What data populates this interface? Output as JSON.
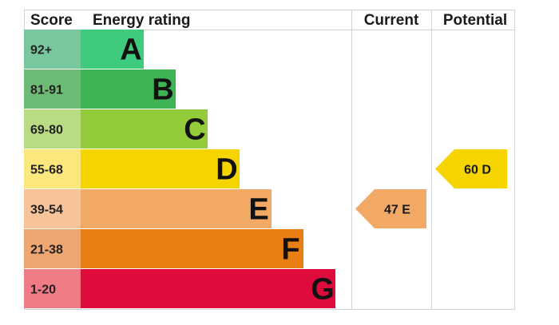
{
  "headers": {
    "score": "Score",
    "energy_rating": "Energy rating",
    "current": "Current",
    "potential": "Potential"
  },
  "chart_data": {
    "type": "bar",
    "categories": [
      "A",
      "B",
      "C",
      "D",
      "E",
      "F",
      "G"
    ],
    "bands": [
      {
        "letter": "A",
        "range": "92+",
        "score_color": "#79c89d",
        "bar_color": "#3ecb7e"
      },
      {
        "letter": "B",
        "range": "81-91",
        "score_color": "#6dbb75",
        "bar_color": "#3eb454"
      },
      {
        "letter": "C",
        "range": "69-80",
        "score_color": "#b9dc83",
        "bar_color": "#93cb3a"
      },
      {
        "letter": "D",
        "range": "55-68",
        "score_color": "#fbe77c",
        "bar_color": "#f6d400"
      },
      {
        "letter": "E",
        "range": "39-54",
        "score_color": "#f6c498",
        "bar_color": "#f2a965"
      },
      {
        "letter": "F",
        "range": "21-38",
        "score_color": "#efa670",
        "bar_color": "#e97f12"
      },
      {
        "letter": "G",
        "range": "1-20",
        "score_color": "#ef7b87",
        "bar_color": "#dd0c3d"
      }
    ],
    "current": {
      "value": 47,
      "band": "E",
      "label": "47 E",
      "color": "#f2a965"
    },
    "potential": {
      "value": 60,
      "band": "D",
      "label": "60 D",
      "color": "#f6d400"
    }
  }
}
